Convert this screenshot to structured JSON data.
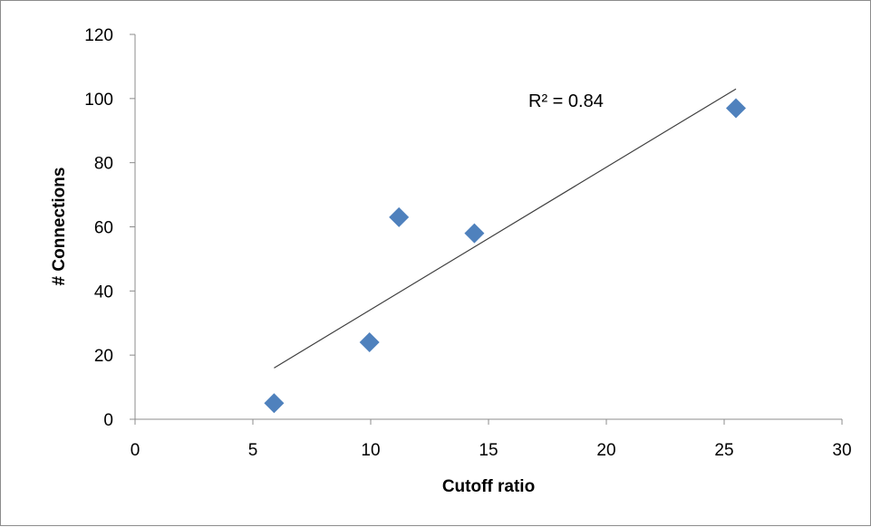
{
  "chart_data": {
    "type": "scatter",
    "xlabel": "Cutoff ratio",
    "ylabel": "# Connections",
    "xlim": [
      0,
      30
    ],
    "ylim": [
      0,
      120
    ],
    "x_ticks": [
      "0",
      "5",
      "10",
      "15",
      "20",
      "25",
      "30"
    ],
    "y_ticks": [
      "0",
      "20",
      "40",
      "60",
      "80",
      "100",
      "120"
    ],
    "series": [
      {
        "points": [
          {
            "x": 5.9,
            "y": 5
          },
          {
            "x": 9.95,
            "y": 24
          },
          {
            "x": 11.2,
            "y": 63
          },
          {
            "x": 14.4,
            "y": 58
          },
          {
            "x": 25.5,
            "y": 97
          }
        ],
        "color": "#4f81bd",
        "marker": "diamond"
      }
    ],
    "trendline": {
      "type": "linear",
      "from": {
        "x": 5.9,
        "y": 16
      },
      "to": {
        "x": 25.5,
        "y": 103
      },
      "color": "#404040"
    },
    "annotation": "R² = 0.84",
    "grid": false,
    "legend": "none"
  }
}
